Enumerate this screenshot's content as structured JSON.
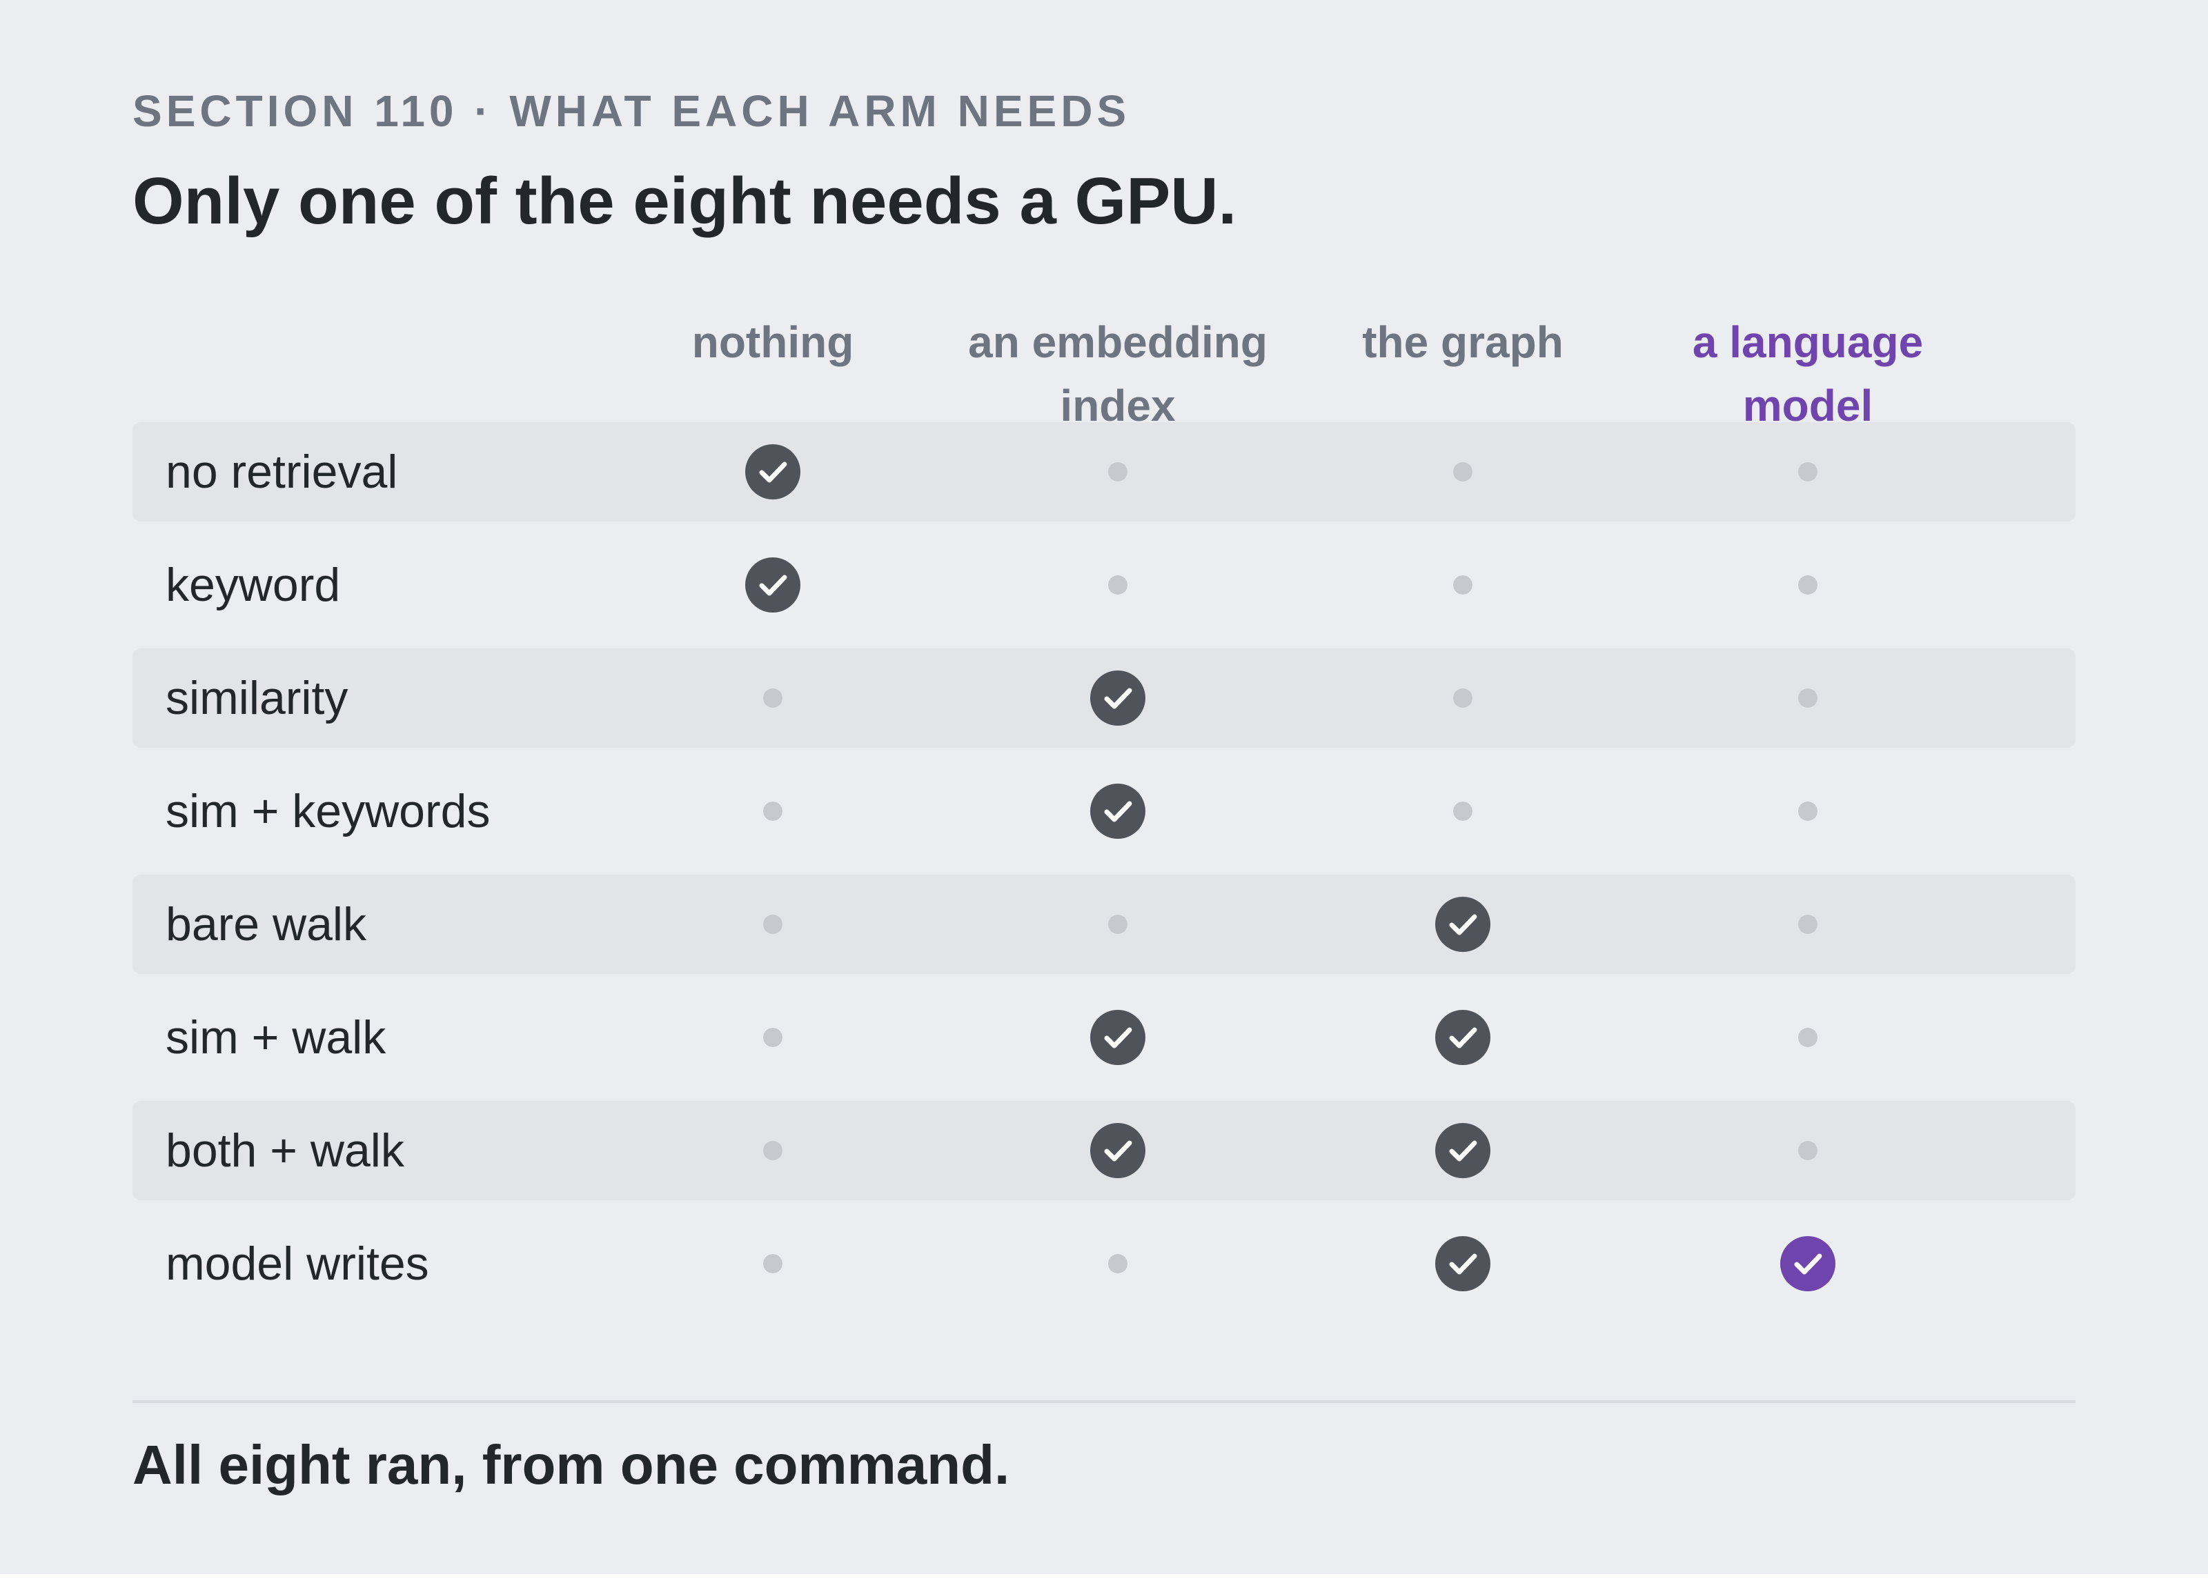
{
  "section_label": "SECTION 110 · WHAT EACH ARM NEEDS",
  "title": "Only one of the eight needs a GPU.",
  "columns": [
    {
      "label": "nothing",
      "highlight": false
    },
    {
      "label": "an embedding index",
      "highlight": false
    },
    {
      "label": "the graph",
      "highlight": false
    },
    {
      "label": "a language model",
      "highlight": true
    }
  ],
  "rows": [
    {
      "label": "no retrieval",
      "needs": [
        true,
        false,
        false,
        false
      ]
    },
    {
      "label": "keyword",
      "needs": [
        true,
        false,
        false,
        false
      ]
    },
    {
      "label": "similarity",
      "needs": [
        false,
        true,
        false,
        false
      ]
    },
    {
      "label": "sim + keywords",
      "needs": [
        false,
        true,
        false,
        false
      ]
    },
    {
      "label": "bare walk",
      "needs": [
        false,
        false,
        true,
        false
      ]
    },
    {
      "label": "sim + walk",
      "needs": [
        false,
        true,
        true,
        false
      ]
    },
    {
      "label": "both + walk",
      "needs": [
        false,
        true,
        true,
        false
      ]
    },
    {
      "label": "model writes",
      "needs": [
        false,
        false,
        true,
        true
      ]
    }
  ],
  "footer": "All eight ran, from one command.",
  "icons": {
    "needed": "check-circle-icon",
    "not_needed": "dot-icon"
  },
  "colors": {
    "background": "#ecedf1",
    "row_shade": "#e3e4e8",
    "text": "#23262b",
    "muted": "#6f7580",
    "check": "#50535a",
    "accent": "#7044ad",
    "dot": "#c8c9ce"
  }
}
